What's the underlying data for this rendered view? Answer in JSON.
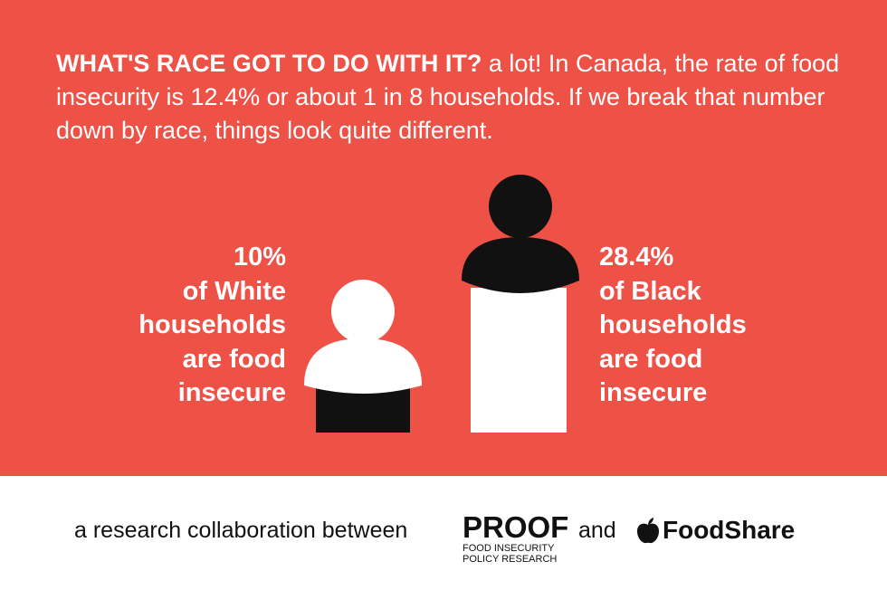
{
  "headline": {
    "lead": "WHAT'S RACE GOT TO DO WITH IT?",
    "body": " a lot! In Canada, the rate of food insecurity is 12.4% or about 1 in 8 households. If we break that number down by race, things look quite different."
  },
  "stats": {
    "white": {
      "percent": "10%",
      "line2": "of White",
      "line3": "households",
      "line4": "are food",
      "line5": "insecure"
    },
    "black": {
      "percent": "28.4%",
      "line2": "of Black",
      "line3": "households",
      "line4": "are food",
      "line5": "insecure"
    }
  },
  "chart_data": {
    "type": "bar",
    "categories": [
      "White households",
      "Black households"
    ],
    "values": [
      10,
      28.4
    ],
    "unit": "%"
  },
  "footer": {
    "collab": "a research collaboration between",
    "proof_name": "PROOF",
    "proof_line1": "FOOD INSECURITY",
    "proof_line2": "POLICY RESEARCH",
    "and": "and",
    "foodshare_icon": "apple-icon",
    "foodshare_name": "FoodShare"
  },
  "colors": {
    "background": "#ee5146",
    "white": "#ffffff",
    "black": "#111111"
  }
}
